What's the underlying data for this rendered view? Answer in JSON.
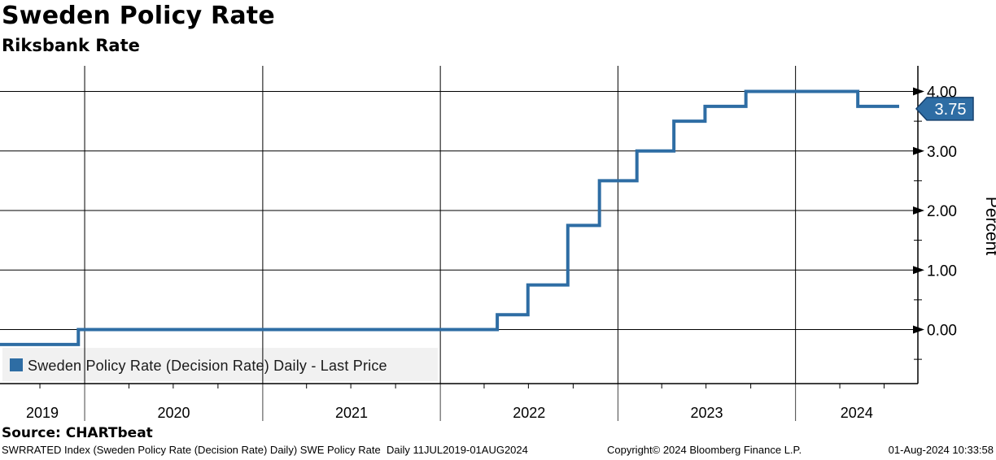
{
  "header": {
    "title": "Sweden Policy Rate",
    "subtitle": "Riksbank Rate"
  },
  "chart_data": {
    "type": "line",
    "line_style": "step-after",
    "title": "Sweden Policy Rate",
    "subtitle": "Riksbank Rate",
    "ylabel": "Percent",
    "grid": true,
    "legend_position": "bottom-left",
    "line_color": "#2e6da4",
    "x_start": "2019-07-11",
    "x_end": "2024-08-01",
    "x_years": [
      "2019",
      "2020",
      "2021",
      "2022",
      "2023",
      "2024"
    ],
    "yticks": [
      {
        "value": 0,
        "label": "0.00"
      },
      {
        "value": 1,
        "label": "1.00"
      },
      {
        "value": 2,
        "label": "2.00"
      },
      {
        "value": 3,
        "label": "3.00"
      },
      {
        "value": 4,
        "label": "4.00"
      }
    ],
    "yminor_ticks": [
      -0.5,
      0.5,
      1.5,
      2.5,
      3.5
    ],
    "ylim": [
      -0.9,
      4.43
    ],
    "series": [
      {
        "name": "Sweden Policy Rate (Decision Rate) Daily - Last Price",
        "start": {
          "date": "2019-07-11",
          "value": -0.25
        },
        "changes": [
          {
            "date": "2019-12-19",
            "value": 0.0
          },
          {
            "date": "2022-04-28",
            "value": 0.25
          },
          {
            "date": "2022-06-30",
            "value": 0.75
          },
          {
            "date": "2022-09-20",
            "value": 1.75
          },
          {
            "date": "2022-11-24",
            "value": 2.5
          },
          {
            "date": "2023-02-09",
            "value": 3.0
          },
          {
            "date": "2023-04-26",
            "value": 3.5
          },
          {
            "date": "2023-06-29",
            "value": 3.75
          },
          {
            "date": "2023-09-21",
            "value": 4.0
          },
          {
            "date": "2024-05-08",
            "value": 3.75
          }
        ],
        "end_date": "2024-08-01",
        "last_price": 3.75
      }
    ]
  },
  "legend": {
    "marker_color": "#2e6da4",
    "label": "Sweden Policy Rate (Decision Rate) Daily - Last Price"
  },
  "badge": {
    "value": "3.75",
    "fill": "#2e6da4",
    "border": "#16416e",
    "text_color": "#ffffff"
  },
  "source": {
    "label": "Source: CHARTbeat"
  },
  "footer": {
    "left": "SWRRATED Index (Sweden Policy Rate (Decision Rate) Daily) SWE Policy Rate  Daily 11JUL2019-01AUG2024",
    "center": "Copyright© 2024 Bloomberg Finance L.P.",
    "right": "01-Aug-2024 10:33:58"
  }
}
